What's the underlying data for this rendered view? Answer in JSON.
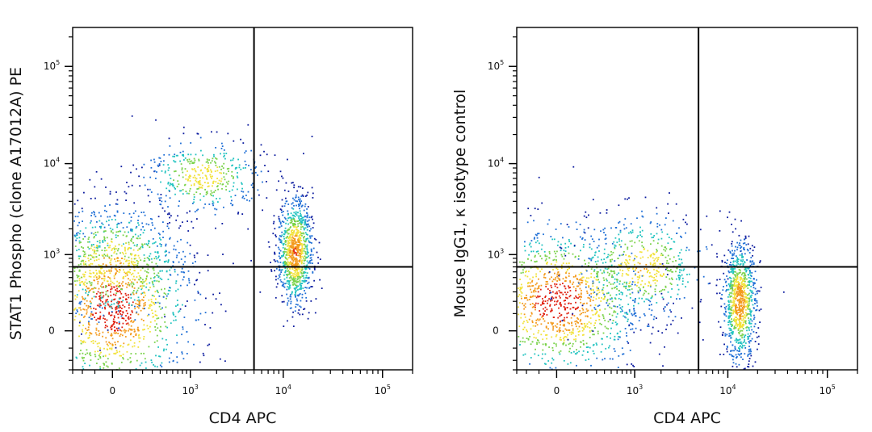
{
  "chart_data": [
    {
      "type": "scatter",
      "subtype": "flow-cytometry-density-dot-plot",
      "xlabel": "CD4 APC",
      "ylabel": "STAT1 Phospho (clone A17012A) PE",
      "x_scale": "biexponential",
      "y_scale": "biexponential",
      "xlim": [
        -300,
        200000
      ],
      "ylim": [
        -300,
        250000
      ],
      "x_ticks": [
        {
          "value": 0,
          "base": "0",
          "exp": ""
        },
        {
          "value": 1000,
          "base": "10",
          "exp": "3"
        },
        {
          "value": 10000,
          "base": "10",
          "exp": "4"
        },
        {
          "value": 100000,
          "base": "10",
          "exp": "5"
        }
      ],
      "y_ticks": [
        {
          "value": 0,
          "base": "0",
          "exp": ""
        },
        {
          "value": 1000,
          "base": "10",
          "exp": "3"
        },
        {
          "value": 10000,
          "base": "10",
          "exp": "4"
        },
        {
          "value": 100000,
          "base": "10",
          "exp": "5"
        }
      ],
      "quadrant_gate": {
        "x": 5000,
        "y": 700
      },
      "color_scale": [
        "#0a1a9e",
        "#1f6fd6",
        "#22c3c0",
        "#7ad24a",
        "#f2e23a",
        "#f39a1c",
        "#e02010"
      ],
      "populations": [
        {
          "name": "",
          "x_center": 0,
          "y_center": 150,
          "x_spread": 0.75,
          "y_spread": 0.85,
          "density": 1.0
        },
        {
          "name": "",
          "x_center": 0,
          "y_center": 800,
          "x_spread": 0.7,
          "y_spread": 0.55,
          "density": 0.45
        },
        {
          "name": "",
          "x_center": 1400,
          "y_center": 7500,
          "x_spread": 0.55,
          "y_spread": 0.35,
          "density": 0.32
        },
        {
          "name": "",
          "x_center": 13000,
          "y_center": 1100,
          "x_spread": 0.16,
          "y_spread": 0.5,
          "density": 0.75
        }
      ],
      "grid": false,
      "legend": "none"
    },
    {
      "type": "scatter",
      "subtype": "flow-cytometry-density-dot-plot",
      "xlabel": "CD4 APC",
      "ylabel": "Mouse IgG1, κ isotype control",
      "x_scale": "biexponential",
      "y_scale": "biexponential",
      "xlim": [
        -300,
        200000
      ],
      "ylim": [
        -300,
        250000
      ],
      "x_ticks": [
        {
          "value": 0,
          "base": "0",
          "exp": ""
        },
        {
          "value": 1000,
          "base": "10",
          "exp": "3"
        },
        {
          "value": 10000,
          "base": "10",
          "exp": "4"
        },
        {
          "value": 100000,
          "base": "10",
          "exp": "5"
        }
      ],
      "y_ticks": [
        {
          "value": 0,
          "base": "0",
          "exp": ""
        },
        {
          "value": 1000,
          "base": "10",
          "exp": "3"
        },
        {
          "value": 10000,
          "base": "10",
          "exp": "4"
        },
        {
          "value": 100000,
          "base": "10",
          "exp": "5"
        }
      ],
      "quadrant_gate": {
        "x": 5000,
        "y": 700
      },
      "color_scale": [
        "#0a1a9e",
        "#1f6fd6",
        "#22c3c0",
        "#7ad24a",
        "#f2e23a",
        "#f39a1c",
        "#e02010"
      ],
      "populations": [
        {
          "name": "",
          "x_center": 0,
          "y_center": 200,
          "x_spread": 0.8,
          "y_spread": 0.7,
          "density": 1.0
        },
        {
          "name": "",
          "x_center": 1200,
          "y_center": 700,
          "x_spread": 0.6,
          "y_spread": 0.5,
          "density": 0.4
        },
        {
          "name": "",
          "x_center": 13000,
          "y_center": 200,
          "x_spread": 0.15,
          "y_spread": 0.55,
          "density": 0.7
        }
      ],
      "grid": false,
      "legend": "none"
    }
  ]
}
